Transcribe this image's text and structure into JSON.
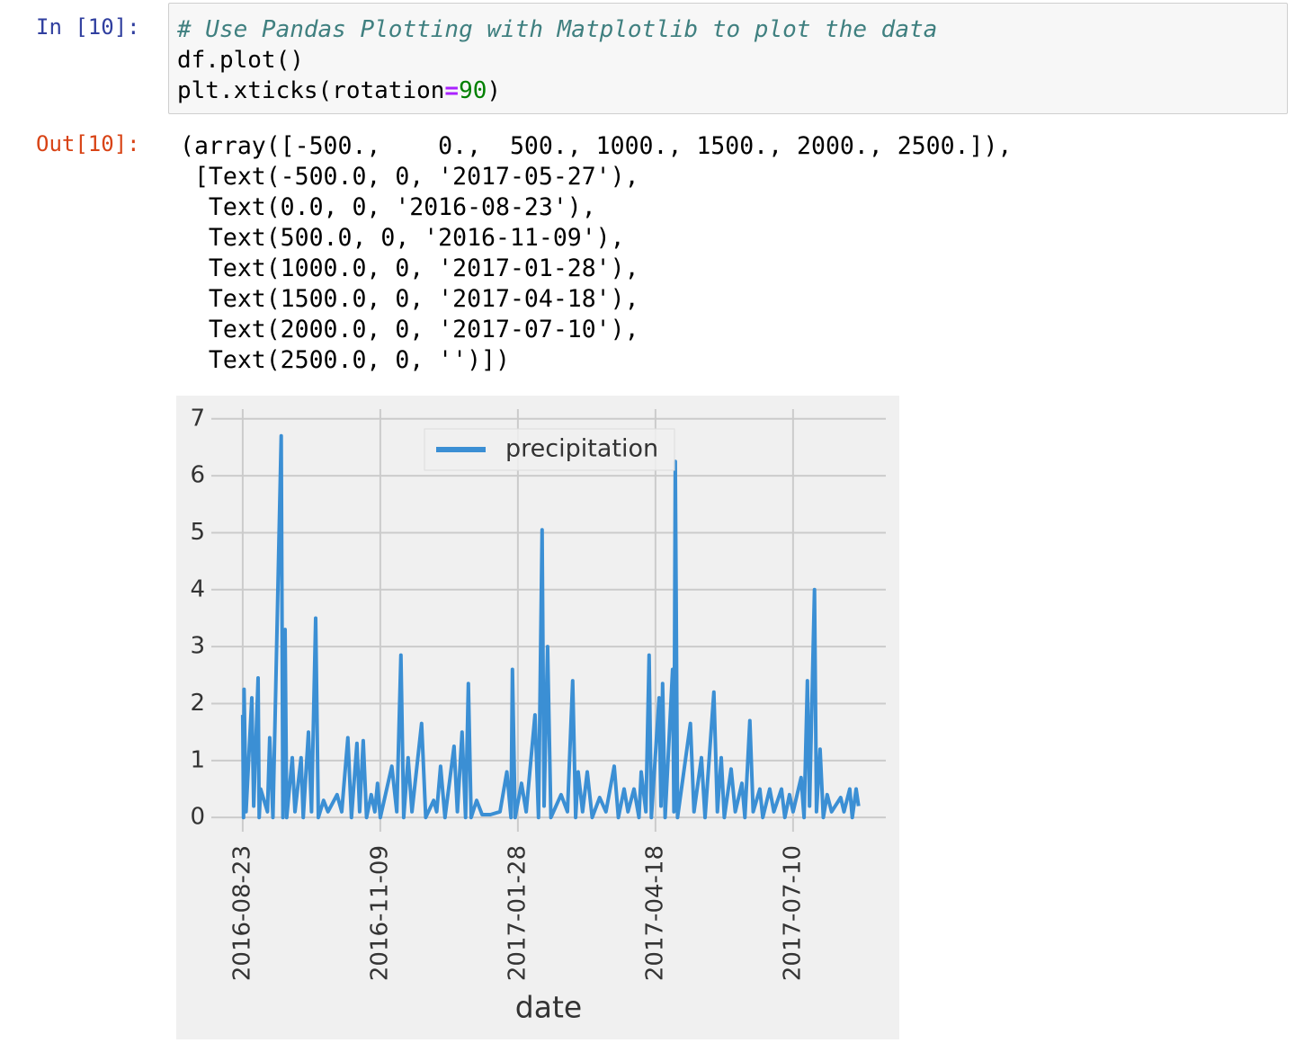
{
  "cell": {
    "in_prompt": "In [10]:",
    "code": {
      "comment": "# Use Pandas Plotting with Matplotlib to plot the data",
      "line2": "df.plot()",
      "line3": [
        "plt.xticks(rotation",
        "=",
        "90",
        ")"
      ]
    }
  },
  "output": {
    "out_prompt": "Out[10]:",
    "lines": [
      "(array([-500.,    0.,  500., 1000., 1500., 2000., 2500.]),",
      " [Text(-500.0, 0, '2017-05-27'),",
      "  Text(0.0, 0, '2016-08-23'),",
      "  Text(500.0, 0, '2016-11-09'),",
      "  Text(1000.0, 0, '2017-01-28'),",
      "  Text(1500.0, 0, '2017-04-18'),",
      "  Text(2000.0, 0, '2017-07-10'),",
      "  Text(2500.0, 0, '')])"
    ]
  },
  "chart_data": {
    "type": "line",
    "x_label": "date",
    "legend": "upper center",
    "grid": true,
    "xlim": [
      -114,
      2337
    ],
    "ylim": [
      -0.25,
      7.17
    ],
    "xticks": [
      {
        "value": 0,
        "label": "2016-08-23"
      },
      {
        "value": 500,
        "label": "2016-11-09"
      },
      {
        "value": 1000,
        "label": "2017-01-28"
      },
      {
        "value": 1500,
        "label": "2017-04-18"
      },
      {
        "value": 2000,
        "label": "2017-07-10"
      }
    ],
    "yticks": [
      0,
      1,
      2,
      3,
      4,
      5,
      6,
      7
    ],
    "series": [
      {
        "name": "precipitation",
        "color": "#3b8fd4",
        "x": [
          0,
          3,
          5,
          12,
          33,
          40,
          56,
          60,
          65,
          90,
          98,
          110,
          140,
          146,
          154,
          160,
          180,
          190,
          212,
          220,
          239,
          250,
          265,
          275,
          294,
          310,
          343,
          360,
          382,
          395,
          415,
          425,
          438,
          450,
          467,
          480,
          490,
          500,
          542,
          560,
          575,
          585,
          601,
          615,
          650,
          665,
          694,
          705,
          719,
          735,
          768,
          780,
          797,
          810,
          820,
          830,
          850,
          870,
          900,
          935,
          960,
          975,
          980,
          990,
          1013,
          1030,
          1062,
          1075,
          1088,
          1095,
          1108,
          1120,
          1157,
          1180,
          1199,
          1210,
          1219,
          1235,
          1252,
          1270,
          1297,
          1320,
          1350,
          1365,
          1386,
          1400,
          1422,
          1440,
          1448,
          1465,
          1477,
          1485,
          1513,
          1520,
          1526,
          1535,
          1562,
          1567,
          1572,
          1580,
          1627,
          1640,
          1667,
          1680,
          1712,
          1725,
          1739,
          1750,
          1775,
          1790,
          1814,
          1825,
          1843,
          1855,
          1879,
          1890,
          1915,
          1930,
          1958,
          1970,
          1987,
          2000,
          2029,
          2040,
          2052,
          2060,
          2078,
          2085,
          2098,
          2110,
          2124,
          2140,
          2173,
          2185,
          2206,
          2215,
          2229,
          2238
        ],
        "values": [
          1.8,
          0,
          2.25,
          0.1,
          2.1,
          0.2,
          2.45,
          0,
          0.5,
          0.1,
          1.4,
          0,
          6.7,
          0,
          3.3,
          0,
          1.05,
          0.1,
          1.05,
          0,
          1.5,
          0.1,
          3.5,
          0,
          0.3,
          0.1,
          0.4,
          0.1,
          1.4,
          0,
          1.3,
          0.1,
          1.35,
          0,
          0.4,
          0.1,
          0.6,
          0,
          0.9,
          0.1,
          2.85,
          0,
          1.05,
          0.1,
          1.65,
          0,
          0.3,
          0.1,
          0.9,
          0,
          1.25,
          0.1,
          1.5,
          0,
          2.35,
          0,
          0.3,
          0.05,
          0.05,
          0.1,
          0.8,
          0,
          2.6,
          0,
          0.6,
          0.1,
          1.8,
          0,
          5.05,
          0.2,
          3.0,
          0,
          0.4,
          0.1,
          2.4,
          0,
          0.8,
          0.1,
          0.8,
          0,
          0.35,
          0.1,
          0.9,
          0,
          0.5,
          0.1,
          0.5,
          0,
          0.8,
          0.1,
          2.85,
          0,
          2.1,
          0.2,
          2.35,
          0,
          2.6,
          0.1,
          6.25,
          0,
          1.65,
          0.1,
          1.05,
          0,
          2.2,
          0.1,
          1.05,
          0,
          0.85,
          0.1,
          0.6,
          0,
          1.7,
          0.1,
          0.5,
          0,
          0.5,
          0.1,
          0.5,
          0,
          0.4,
          0.1,
          0.7,
          0,
          2.4,
          0.2,
          4.0,
          0.1,
          1.2,
          0,
          0.4,
          0.1,
          0.35,
          0.1,
          0.5,
          0,
          0.5,
          0.2
        ]
      }
    ]
  }
}
